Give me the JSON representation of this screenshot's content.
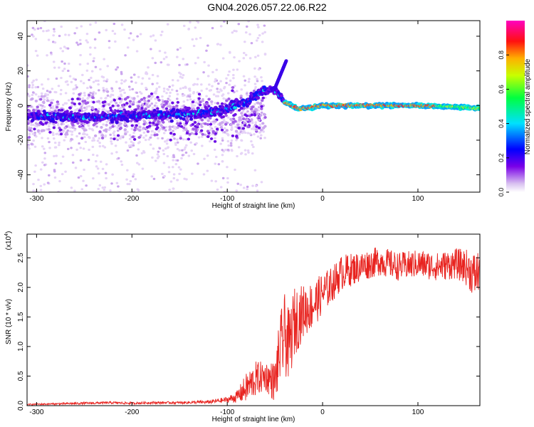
{
  "figure_title": "GN04.2026.057.22.06.R22",
  "colors": {
    "snr_line": "#e8231f",
    "spec_halo": "#caa0ee",
    "spec_low": "#5a10e8",
    "spec_mid": "#00d8e8",
    "spec_high": "#ff1010"
  },
  "chart_data": [
    {
      "type": "heatmap",
      "name": "spectrogram",
      "title": "",
      "xlabel": "Height of straight line (km)",
      "ylabel": "Frequency (Hz)",
      "xlim": [
        -310,
        165
      ],
      "ylim": [
        -50,
        49
      ],
      "x_ticks": [
        -300,
        -200,
        -100,
        0,
        100
      ],
      "y_ticks": [
        -40,
        -20,
        0,
        20,
        40
      ],
      "x_tick_labels": [
        "-300",
        "-200",
        "-100",
        "0",
        "100"
      ],
      "y_tick_labels": [
        "-40",
        "-20",
        "0",
        "20",
        "40"
      ],
      "colorbar": {
        "label": "Normalized spectral amplitude",
        "range": [
          0,
          1
        ],
        "ticks": [
          0.0,
          0.2,
          0.4,
          0.6,
          0.8
        ],
        "tick_labels": [
          "0.0",
          "0.2",
          "0.4",
          "0.6",
          "0.8"
        ],
        "colormap": "rainbow (violet-blue-cyan-green-yellow-red-magenta)"
      },
      "ridge_frequency_hz": [
        {
          "x": -300,
          "y": -6
        },
        {
          "x": -250,
          "y": -7
        },
        {
          "x": -200,
          "y": -6
        },
        {
          "x": -150,
          "y": -5
        },
        {
          "x": -120,
          "y": -4
        },
        {
          "x": -100,
          "y": -2
        },
        {
          "x": -80,
          "y": 2
        },
        {
          "x": -65,
          "y": 8
        },
        {
          "x": -50,
          "y": 10
        },
        {
          "x": -42,
          "y": 18
        },
        {
          "x": -38,
          "y": 25
        },
        {
          "x": -40,
          "y": 2
        },
        {
          "x": -25,
          "y": -2
        },
        {
          "x": -10,
          "y": -1
        },
        {
          "x": 0,
          "y": 0
        },
        {
          "x": 50,
          "y": 0
        },
        {
          "x": 100,
          "y": 0
        },
        {
          "x": 150,
          "y": -1
        },
        {
          "x": 165,
          "y": -2
        }
      ],
      "grid": false
    },
    {
      "type": "line",
      "name": "snr",
      "title": "",
      "xlabel": "Height of straight line (km)",
      "ylabel": "SNR (10 * v/v)",
      "y_multiplier_label": "(x10",
      "y_multiplier_exp": "4",
      "xlim": [
        -310,
        165
      ],
      "ylim": [
        0,
        2.9
      ],
      "x_ticks": [
        -300,
        -200,
        -100,
        0,
        100
      ],
      "y_ticks": [
        0.0,
        0.5,
        1.0,
        1.5,
        2.0,
        2.5
      ],
      "x_tick_labels": [
        "-300",
        "-200",
        "-100",
        "0",
        "100"
      ],
      "y_tick_labels": [
        "0.0",
        "0.5",
        "1.0",
        "1.5",
        "2.0",
        "2.5"
      ],
      "series": [
        {
          "x": [
            -310,
            -280,
            -250,
            -220,
            -200,
            -180,
            -150,
            -120,
            -100,
            -90,
            -80,
            -70,
            -60,
            -50,
            -45,
            -40,
            -35,
            -30,
            -20,
            -10,
            0,
            10,
            20,
            30,
            40,
            50,
            60,
            80,
            100,
            120,
            140,
            150,
            160,
            165
          ],
          "y": [
            0.02,
            0.03,
            0.04,
            0.05,
            0.04,
            0.05,
            0.05,
            0.06,
            0.1,
            0.15,
            0.3,
            0.45,
            0.5,
            0.4,
            0.9,
            1.2,
            1.0,
            1.4,
            1.6,
            1.7,
            1.9,
            2.05,
            2.25,
            2.3,
            2.35,
            2.4,
            2.45,
            2.35,
            2.4,
            2.35,
            2.4,
            2.35,
            2.2,
            2.3
          ],
          "noise": [
            0.01,
            0.015,
            0.02,
            0.02,
            0.02,
            0.02,
            0.02,
            0.03,
            0.05,
            0.1,
            0.25,
            0.3,
            0.25,
            0.35,
            0.6,
            0.7,
            0.6,
            0.6,
            0.45,
            0.4,
            0.35,
            0.3,
            0.3,
            0.28,
            0.26,
            0.25,
            0.25,
            0.24,
            0.24,
            0.24,
            0.26,
            0.3,
            0.4,
            0.35
          ]
        }
      ],
      "grid": false
    }
  ]
}
